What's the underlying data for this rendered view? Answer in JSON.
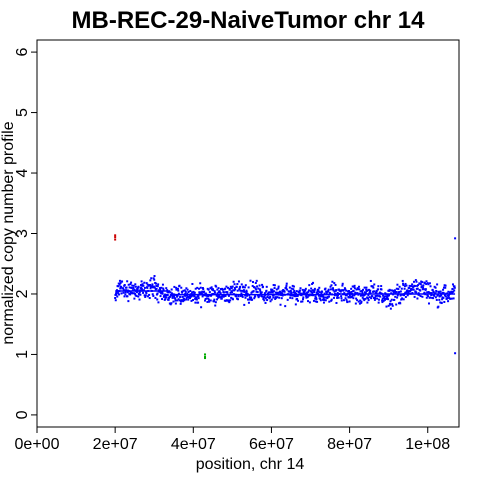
{
  "chart_data": {
    "type": "scatter",
    "title": "MB-REC-29-NaiveTumor chr 14",
    "xlabel": "position, chr 14",
    "ylabel": "normalized copy number profile",
    "xlim": [
      0,
      108000000
    ],
    "ylim": [
      -0.2,
      6.2
    ],
    "x_ticks": [
      {
        "value": 0,
        "label": "0e+00"
      },
      {
        "value": 20000000,
        "label": "2e+07"
      },
      {
        "value": 40000000,
        "label": "4e+07"
      },
      {
        "value": 60000000,
        "label": "6e+07"
      },
      {
        "value": 80000000,
        "label": "8e+07"
      },
      {
        "value": 100000000,
        "label": "1e+08"
      }
    ],
    "y_ticks": [
      {
        "value": 0,
        "label": "0"
      },
      {
        "value": 1,
        "label": "1"
      },
      {
        "value": 2,
        "label": "2"
      },
      {
        "value": 3,
        "label": "3"
      },
      {
        "value": 4,
        "label": "4"
      },
      {
        "value": 5,
        "label": "5"
      },
      {
        "value": 6,
        "label": "6"
      }
    ],
    "grid": false,
    "series": [
      {
        "color": "#0000ff",
        "x_range": [
          20000000,
          107000000
        ],
        "baseline": 2.0,
        "values": [
          [
            20000000,
            2.02
          ],
          [
            21000000,
            2.08
          ],
          [
            22000000,
            2.12
          ],
          [
            23000000,
            2.06
          ],
          [
            24000000,
            2.05
          ],
          [
            25000000,
            2.08
          ],
          [
            26000000,
            2.1
          ],
          [
            27000000,
            2.06
          ],
          [
            28000000,
            2.03
          ],
          [
            29000000,
            2.08
          ],
          [
            30000000,
            2.12
          ],
          [
            31000000,
            2.05
          ],
          [
            32000000,
            2.0
          ],
          [
            33000000,
            2.02
          ],
          [
            34000000,
            1.95
          ],
          [
            35000000,
            1.98
          ],
          [
            36000000,
            2.0
          ],
          [
            37000000,
            1.97
          ],
          [
            38000000,
            1.98
          ],
          [
            39000000,
            2.0
          ],
          [
            40000000,
            1.97
          ],
          [
            41000000,
            2.0
          ],
          [
            42000000,
            1.98
          ],
          [
            43000000,
            1.96
          ],
          [
            44000000,
            1.98
          ],
          [
            45000000,
            2.0
          ],
          [
            46000000,
            2.0
          ],
          [
            47000000,
            2.02
          ],
          [
            48000000,
            2.0
          ],
          [
            50000000,
            1.98
          ],
          [
            52000000,
            2.02
          ],
          [
            54000000,
            2.0
          ],
          [
            56000000,
            2.05
          ],
          [
            58000000,
            2.0
          ],
          [
            60000000,
            1.98
          ],
          [
            62000000,
            2.0
          ],
          [
            64000000,
            2.02
          ],
          [
            66000000,
            2.0
          ],
          [
            68000000,
            1.98
          ],
          [
            70000000,
            2.02
          ],
          [
            72000000,
            1.98
          ],
          [
            74000000,
            2.0
          ],
          [
            76000000,
            2.02
          ],
          [
            78000000,
            2.0
          ],
          [
            80000000,
            2.02
          ],
          [
            82000000,
            2.0
          ],
          [
            84000000,
            1.98
          ],
          [
            86000000,
            2.0
          ],
          [
            88000000,
            1.98
          ],
          [
            90000000,
            1.96
          ],
          [
            92000000,
            2.0
          ],
          [
            94000000,
            2.02
          ],
          [
            96000000,
            2.08
          ],
          [
            98000000,
            2.1
          ],
          [
            100000000,
            2.06
          ],
          [
            102000000,
            2.0
          ],
          [
            104000000,
            1.98
          ],
          [
            106000000,
            2.0
          ],
          [
            107000000,
            2.05
          ]
        ]
      },
      {
        "color": "#cc0000",
        "values": [
          [
            20000000,
            2.94
          ],
          [
            20000000,
            2.9
          ],
          [
            20000000,
            2.97
          ]
        ]
      },
      {
        "color": "#00aa00",
        "values": [
          [
            43000000,
            1.0
          ],
          [
            43000000,
            0.96
          ],
          [
            43000000,
            0.94
          ]
        ]
      },
      {
        "color": "#0000ff",
        "values": [
          [
            107000000,
            2.92
          ],
          [
            107000000,
            1.02
          ]
        ]
      }
    ],
    "segments": [
      {
        "color": "#0000ff",
        "x": [
          20000000,
          34000000
        ],
        "y": 2.05
      },
      {
        "color": "#0000ff",
        "x": [
          34000000,
          76000000
        ],
        "y": 1.99
      },
      {
        "color": "#0000ff",
        "x": [
          76000000,
          107000000
        ],
        "y": 2.0
      }
    ]
  }
}
